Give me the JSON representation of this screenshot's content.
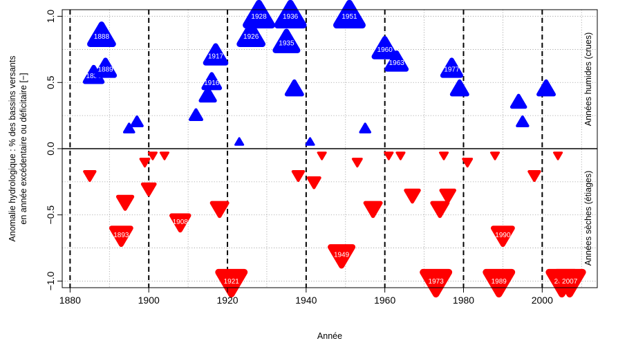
{
  "chart_data": {
    "type": "scatter",
    "xlabel": "Année",
    "ylabel": [
      "Anomalie hydrologique : % des bassins versants",
      "en année excédentaire ou déficitaire [−]"
    ],
    "xlim": [
      1878,
      2014
    ],
    "ylim": [
      -1.05,
      1.05
    ],
    "x_ticks": [
      1880,
      1900,
      1920,
      1940,
      1960,
      1980,
      2000
    ],
    "x_tick_labels": [
      "1880",
      "1900",
      "1920",
      "1940",
      "1960",
      "1980",
      "2000"
    ],
    "y_ticks": [
      -1.0,
      -0.5,
      0.0,
      0.5,
      1.0
    ],
    "y_tick_labels": [
      "−1.0",
      "−0.5",
      "0.0",
      "0.5",
      "1.0"
    ],
    "grid": true,
    "decade_lines": [
      1880,
      1900,
      1920,
      1940,
      1960,
      1980,
      2000
    ],
    "side_labels": {
      "top": "Années humides (crues)",
      "bottom": "Années sèches (étiages)"
    },
    "series": [
      {
        "name": "Années humides (crues)",
        "marker": "triangle-up",
        "color": "#0000ff",
        "points": [
          {
            "x": 1886,
            "y": 0.55,
            "label": "1886"
          },
          {
            "x": 1888,
            "y": 0.85,
            "label": "1888"
          },
          {
            "x": 1889,
            "y": 0.6,
            "label": "1889"
          },
          {
            "x": 1895,
            "y": 0.15,
            "label": ""
          },
          {
            "x": 1897,
            "y": 0.2,
            "label": ""
          },
          {
            "x": 1912,
            "y": 0.25,
            "label": ""
          },
          {
            "x": 1915,
            "y": 0.4,
            "label": ""
          },
          {
            "x": 1916,
            "y": 0.5,
            "label": "1916"
          },
          {
            "x": 1917,
            "y": 0.7,
            "label": "1917"
          },
          {
            "x": 1923,
            "y": 0.05,
            "label": ""
          },
          {
            "x": 1926,
            "y": 0.85,
            "label": "1926"
          },
          {
            "x": 1928,
            "y": 1.0,
            "label": "1928"
          },
          {
            "x": 1935,
            "y": 0.8,
            "label": "1935"
          },
          {
            "x": 1936,
            "y": 1.0,
            "label": "1936"
          },
          {
            "x": 1937,
            "y": 0.45,
            "label": ""
          },
          {
            "x": 1941,
            "y": 0.05,
            "label": ""
          },
          {
            "x": 1951,
            "y": 1.0,
            "label": "1951"
          },
          {
            "x": 1955,
            "y": 0.15,
            "label": ""
          },
          {
            "x": 1960,
            "y": 0.75,
            "label": "1960"
          },
          {
            "x": 1963,
            "y": 0.65,
            "label": "1963"
          },
          {
            "x": 1977,
            "y": 0.6,
            "label": "1977"
          },
          {
            "x": 1979,
            "y": 0.45,
            "label": ""
          },
          {
            "x": 1994,
            "y": 0.35,
            "label": ""
          },
          {
            "x": 1995,
            "y": 0.2,
            "label": ""
          },
          {
            "x": 2001,
            "y": 0.45,
            "label": ""
          }
        ]
      },
      {
        "name": "Années sèches (étiages)",
        "marker": "triangle-down",
        "color": "#ff0000",
        "points": [
          {
            "x": 1885,
            "y": -0.2,
            "label": ""
          },
          {
            "x": 1893,
            "y": -0.65,
            "label": "1893"
          },
          {
            "x": 1894,
            "y": -0.4,
            "label": ""
          },
          {
            "x": 1899,
            "y": -0.1,
            "label": ""
          },
          {
            "x": 1900,
            "y": -0.3,
            "label": ""
          },
          {
            "x": 1901,
            "y": -0.05,
            "label": ""
          },
          {
            "x": 1904,
            "y": -0.05,
            "label": ""
          },
          {
            "x": 1908,
            "y": -0.55,
            "label": "1908"
          },
          {
            "x": 1918,
            "y": -0.45,
            "label": ""
          },
          {
            "x": 1921,
            "y": -1.0,
            "label": "1921"
          },
          {
            "x": 1938,
            "y": -0.2,
            "label": ""
          },
          {
            "x": 1942,
            "y": -0.25,
            "label": ""
          },
          {
            "x": 1944,
            "y": -0.05,
            "label": ""
          },
          {
            "x": 1949,
            "y": -0.8,
            "label": "1949"
          },
          {
            "x": 1953,
            "y": -0.1,
            "label": ""
          },
          {
            "x": 1957,
            "y": -0.45,
            "label": ""
          },
          {
            "x": 1961,
            "y": -0.05,
            "label": ""
          },
          {
            "x": 1964,
            "y": -0.05,
            "label": ""
          },
          {
            "x": 1967,
            "y": -0.35,
            "label": ""
          },
          {
            "x": 1973,
            "y": -1.0,
            "label": "1973"
          },
          {
            "x": 1974,
            "y": -0.45,
            "label": ""
          },
          {
            "x": 1975,
            "y": -0.05,
            "label": ""
          },
          {
            "x": 1976,
            "y": -0.35,
            "label": ""
          },
          {
            "x": 1981,
            "y": -0.1,
            "label": ""
          },
          {
            "x": 1988,
            "y": -0.05,
            "label": ""
          },
          {
            "x": 1989,
            "y": -1.0,
            "label": "1989"
          },
          {
            "x": 1990,
            "y": -0.65,
            "label": "1990"
          },
          {
            "x": 1998,
            "y": -0.2,
            "label": ""
          },
          {
            "x": 2004,
            "y": -0.05,
            "label": ""
          },
          {
            "x": 2005,
            "y": -1.0,
            "label": "2005"
          },
          {
            "x": 2007,
            "y": -1.0,
            "label": "2007"
          }
        ]
      }
    ]
  }
}
